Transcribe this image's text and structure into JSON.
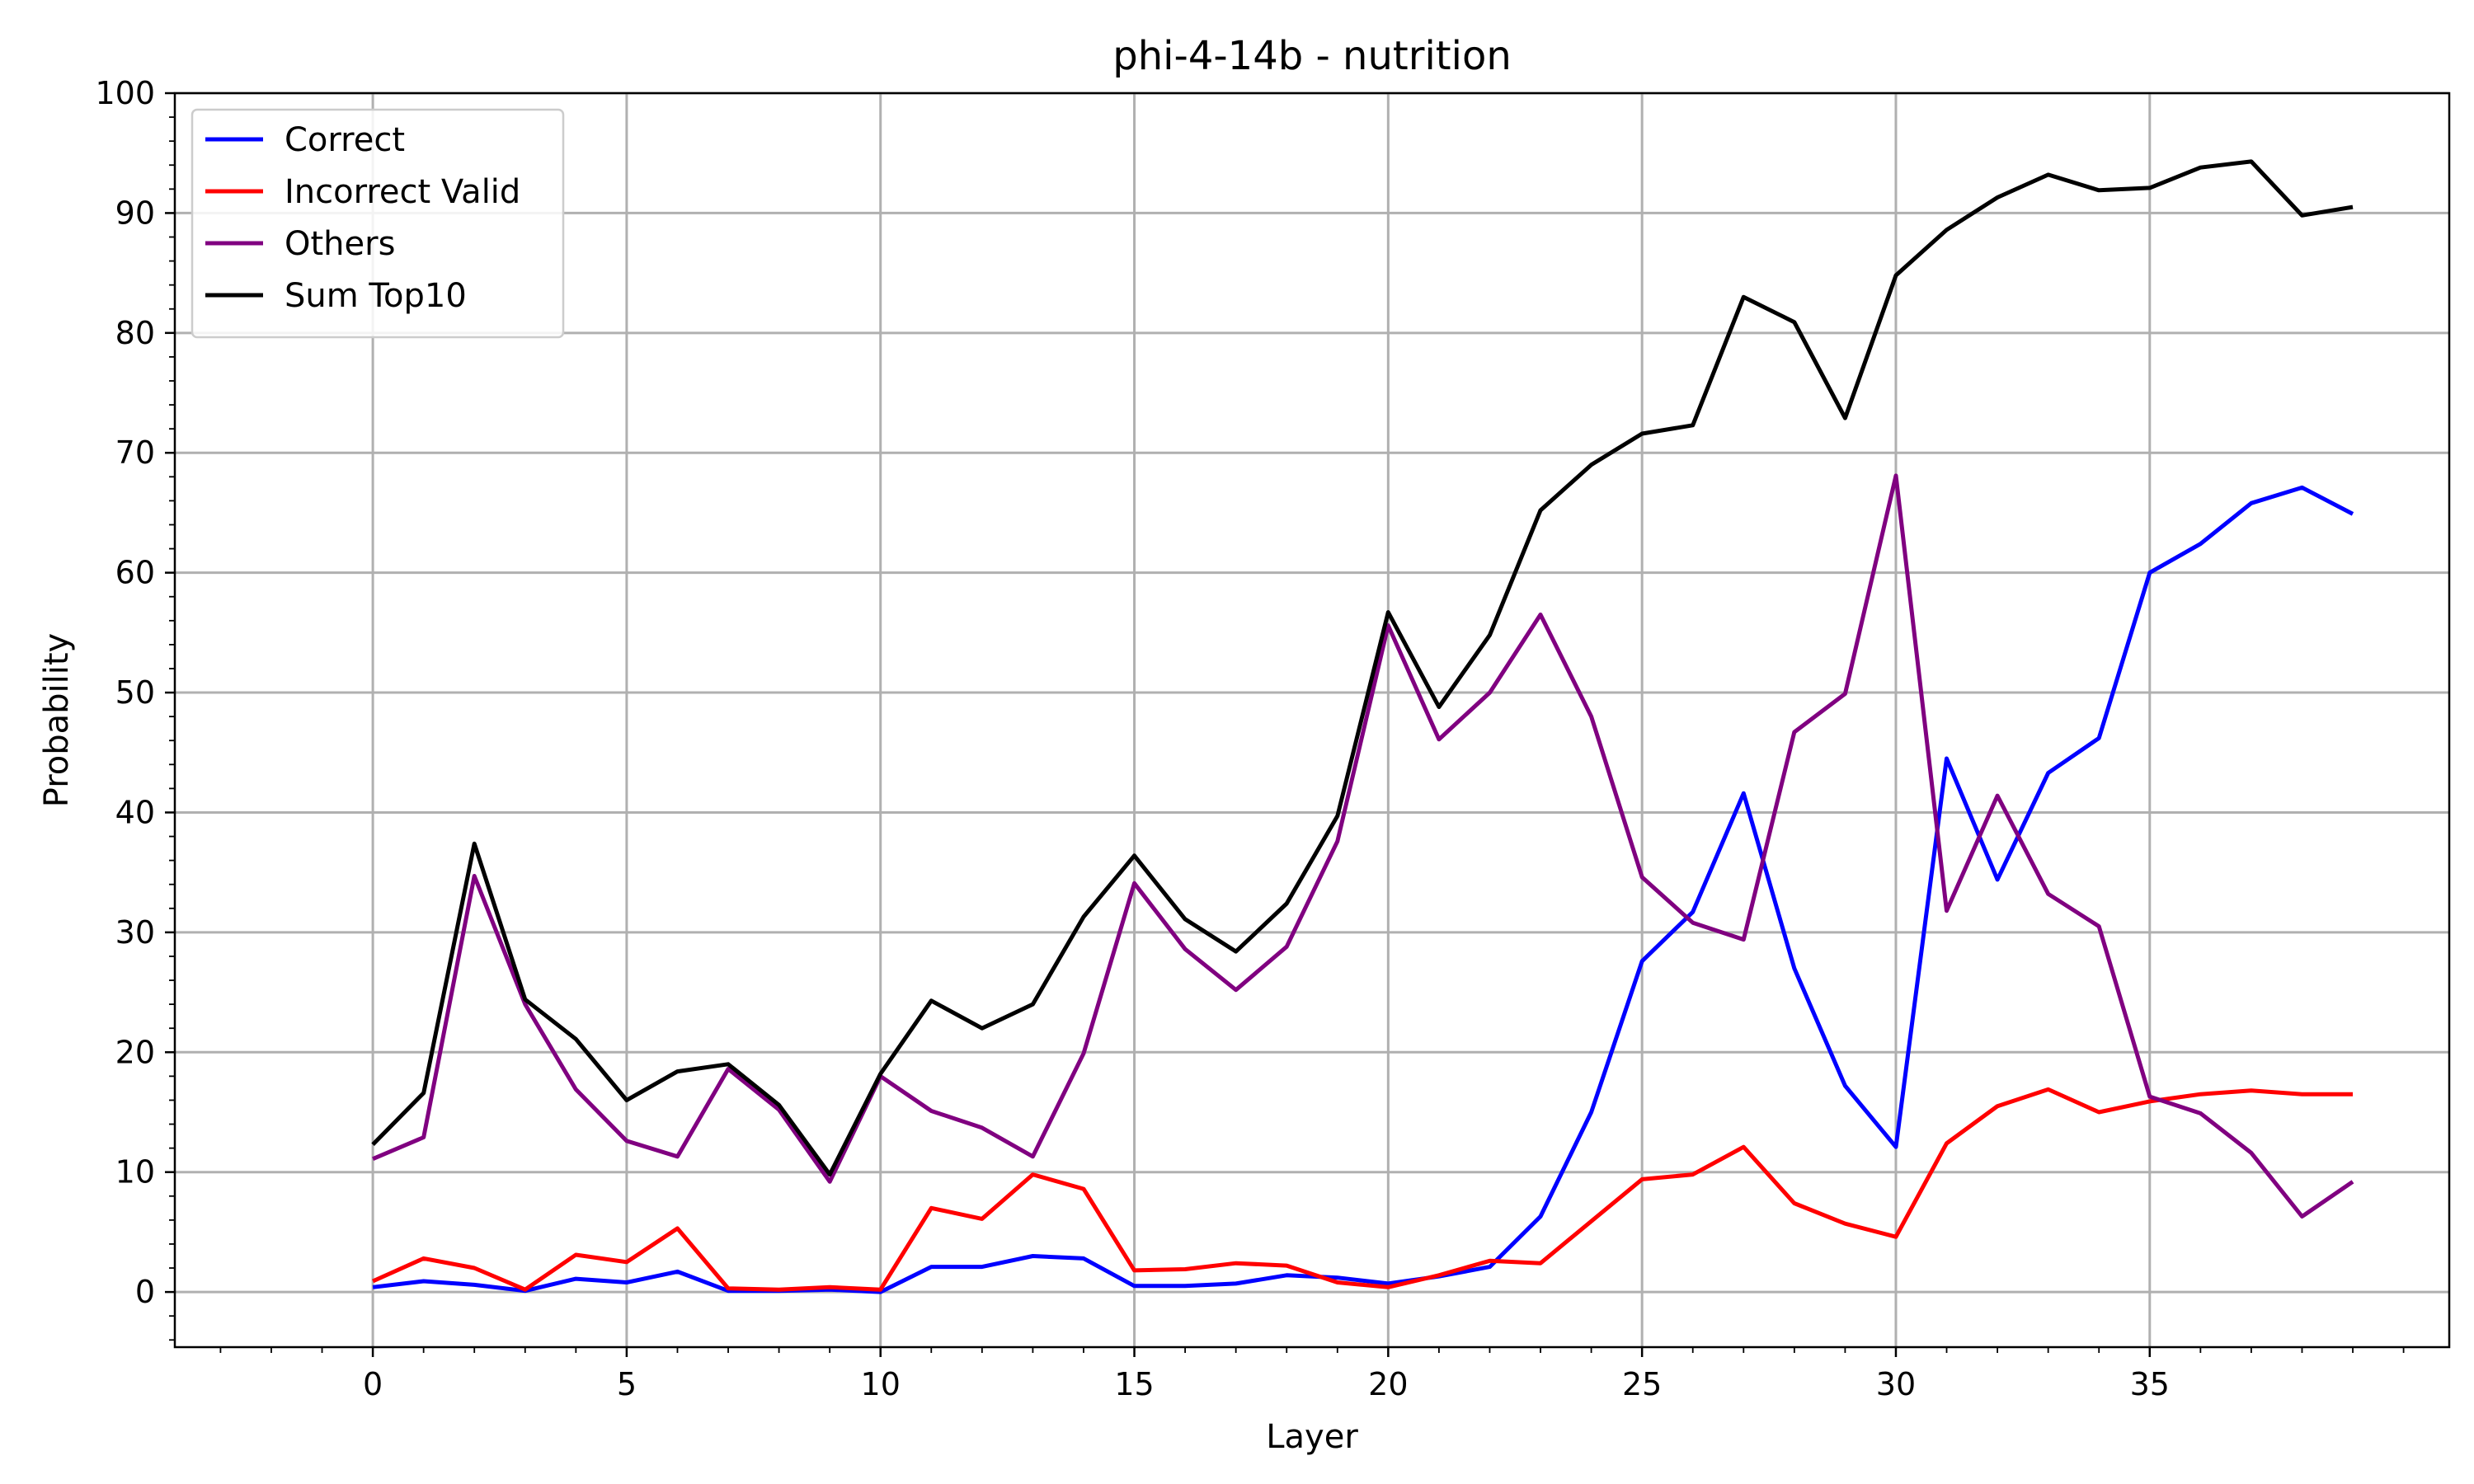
{
  "chart_data": {
    "type": "line",
    "title": "phi-4-14b - nutrition",
    "xlabel": "Layer",
    "ylabel": "Probability",
    "xlim": [
      -3.9,
      40.9
    ],
    "ylim": [
      -4.6,
      100
    ],
    "xticks": [
      0,
      5,
      10,
      15,
      20,
      25,
      30,
      35
    ],
    "yticks": [
      0,
      10,
      20,
      30,
      40,
      50,
      60,
      70,
      80,
      90,
      100
    ],
    "grid": true,
    "legend_position": "top-left",
    "x": [
      0,
      1,
      2,
      3,
      4,
      5,
      6,
      7,
      8,
      9,
      10,
      11,
      12,
      13,
      14,
      15,
      16,
      17,
      18,
      19,
      20,
      21,
      22,
      23,
      24,
      25,
      26,
      27,
      28,
      29,
      30,
      31,
      32,
      33,
      34,
      35,
      36,
      37,
      38,
      39
    ],
    "series": [
      {
        "name": "Correct",
        "color": "#0000ff",
        "values": [
          0.4,
          0.9,
          0.6,
          0.1,
          1.1,
          0.8,
          1.7,
          0.1,
          0.1,
          0.2,
          0.0,
          2.1,
          2.1,
          3.0,
          2.8,
          0.5,
          0.5,
          0.7,
          1.4,
          1.2,
          0.7,
          1.3,
          2.1,
          6.3,
          15.0,
          27.6,
          31.7,
          41.6,
          27.0,
          17.2,
          12.1,
          44.5,
          34.4,
          43.3,
          46.2,
          60.0,
          62.4,
          65.8,
          67.1,
          64.9
        ]
      },
      {
        "name": "Incorrect Valid",
        "color": "#ff0000",
        "values": [
          0.9,
          2.8,
          2.0,
          0.2,
          3.1,
          2.5,
          5.3,
          0.3,
          0.2,
          0.4,
          0.2,
          7.0,
          6.1,
          9.8,
          8.6,
          1.8,
          1.9,
          2.4,
          2.2,
          0.8,
          0.4,
          1.4,
          2.6,
          2.4,
          5.9,
          9.4,
          9.8,
          12.1,
          7.4,
          5.7,
          4.6,
          12.4,
          15.5,
          16.9,
          15.0,
          15.9,
          16.5,
          16.8,
          16.5,
          16.5
        ]
      },
      {
        "name": "Others",
        "color": "#800080",
        "values": [
          11.1,
          12.9,
          34.7,
          24.0,
          16.9,
          12.6,
          11.3,
          18.6,
          15.2,
          9.2,
          18.0,
          15.1,
          13.7,
          11.3,
          19.9,
          34.1,
          28.6,
          25.2,
          28.8,
          37.6,
          55.6,
          46.1,
          50.0,
          56.5,
          48.0,
          34.6,
          30.8,
          29.4,
          46.7,
          49.9,
          68.1,
          31.8,
          41.4,
          33.2,
          30.5,
          16.3,
          14.9,
          11.6,
          6.3,
          9.2
        ]
      },
      {
        "name": "Sum Top10",
        "color": "#000000",
        "values": [
          12.3,
          16.6,
          37.4,
          24.4,
          21.1,
          16.0,
          18.4,
          19.0,
          15.6,
          9.8,
          18.2,
          24.3,
          22.0,
          24.0,
          31.3,
          36.4,
          31.1,
          28.4,
          32.4,
          39.7,
          56.7,
          48.8,
          54.8,
          65.2,
          69.0,
          71.6,
          72.3,
          83.0,
          80.9,
          72.9,
          84.8,
          88.6,
          91.3,
          93.2,
          91.9,
          92.1,
          93.8,
          94.3,
          89.8,
          90.5
        ]
      }
    ]
  }
}
